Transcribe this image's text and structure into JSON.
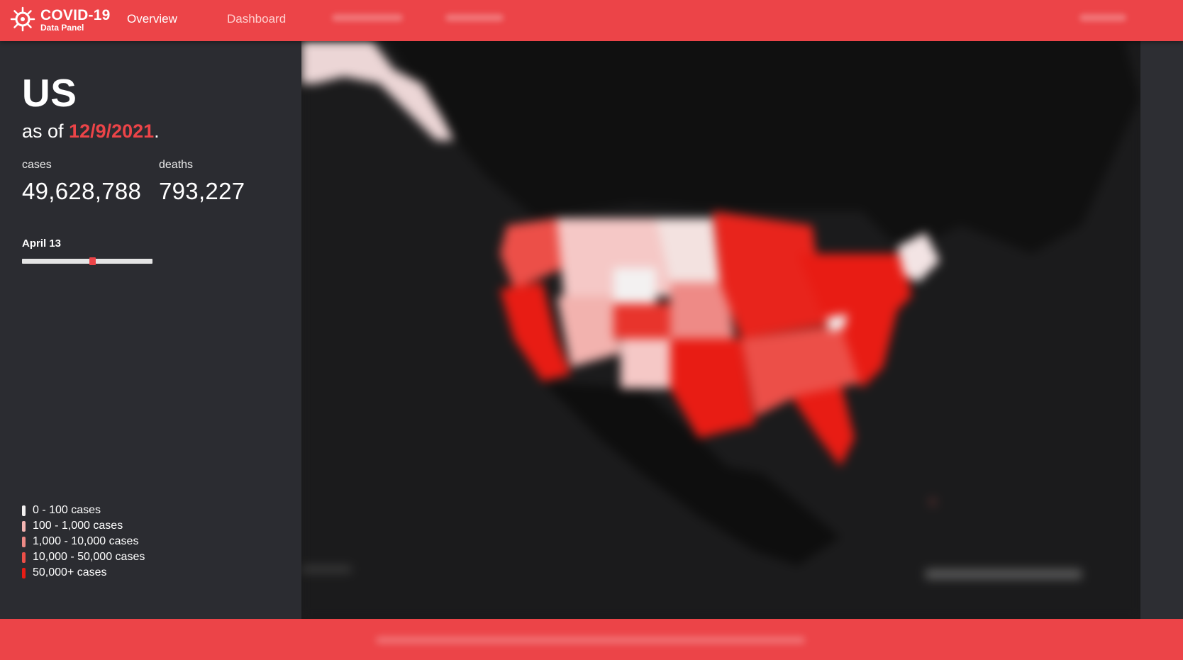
{
  "app": {
    "title": "COVID-19",
    "subtitle": "Data Panel"
  },
  "nav": {
    "items": [
      {
        "label": "Overview"
      },
      {
        "label": "Dashboard"
      }
    ]
  },
  "panel": {
    "country": "US",
    "as_of_prefix": "as of ",
    "date": "12/9/2021",
    "as_of_suffix": ".",
    "cases_label": "cases",
    "cases_value": "49,628,788",
    "deaths_label": "deaths",
    "deaths_value": "793,227",
    "slider_label": "April 13",
    "slider_position": 0.54
  },
  "legend": [
    {
      "label": "0 - 100 cases",
      "color": "#f3f1f1"
    },
    {
      "label": "100 - 1,000 cases",
      "color": "#f5b6b3"
    },
    {
      "label": "1,000 - 10,000 cases",
      "color": "#ee8a86"
    },
    {
      "label": "10,000 - 50,000 cases",
      "color": "#ec4f48"
    },
    {
      "label": "50,000+ cases",
      "color": "#e81c14"
    }
  ],
  "colors": {
    "accent": "#ec4448",
    "panel_bg": "#2b2c31",
    "map_bg": "#1b1b1c"
  }
}
